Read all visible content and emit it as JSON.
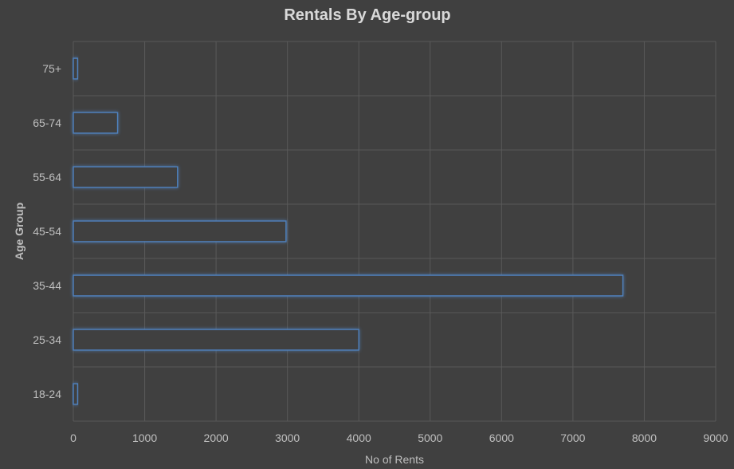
{
  "chart_data": {
    "type": "bar",
    "orientation": "horizontal",
    "title": "Rentals By Age-group",
    "xlabel": "No of Rents",
    "ylabel": "Age Group",
    "categories": [
      "18-24",
      "25-34",
      "35-44",
      "45-54",
      "55-64",
      "65-74",
      "75+"
    ],
    "values": [
      60,
      4000,
      7700,
      2980,
      1460,
      620,
      60
    ],
    "xlim": [
      0,
      9000
    ],
    "xticks": [
      0,
      1000,
      2000,
      3000,
      4000,
      5000,
      6000,
      7000,
      8000,
      9000
    ],
    "grid": true,
    "legend": "none",
    "colors": {
      "background": "#404040",
      "bar_outline": "#4f81bd",
      "grid": "#595959",
      "text": "#bfbfbf"
    }
  }
}
